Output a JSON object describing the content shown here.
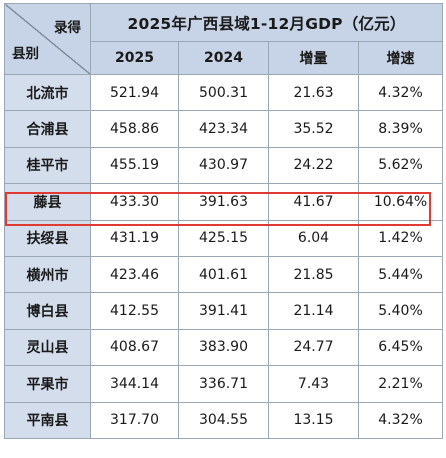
{
  "table": {
    "title": "2025年广西县域1-12月GDP（亿元）",
    "corner_top": "录得",
    "corner_bottom": "县别",
    "columns": [
      "2025",
      "2024",
      "增量",
      "增速"
    ],
    "rows": [
      {
        "name": "北流市",
        "v2025": "521.94",
        "v2024": "500.31",
        "increase": "21.63",
        "growth": "4.32%"
      },
      {
        "name": "合浦县",
        "v2025": "458.86",
        "v2024": "423.34",
        "increase": "35.52",
        "growth": "8.39%"
      },
      {
        "name": "桂平市",
        "v2025": "455.19",
        "v2024": "430.97",
        "increase": "24.22",
        "growth": "5.62%"
      },
      {
        "name": "藤县",
        "v2025": "433.30",
        "v2024": "391.63",
        "increase": "41.67",
        "growth": "10.64%"
      },
      {
        "name": "扶绥县",
        "v2025": "431.19",
        "v2024": "425.15",
        "increase": "6.04",
        "growth": "1.42%"
      },
      {
        "name": "横州市",
        "v2025": "423.46",
        "v2024": "401.61",
        "increase": "21.85",
        "growth": "5.44%"
      },
      {
        "name": "博白县",
        "v2025": "412.55",
        "v2024": "391.41",
        "increase": "21.14",
        "growth": "5.40%"
      },
      {
        "name": "灵山县",
        "v2025": "408.67",
        "v2024": "383.90",
        "increase": "24.77",
        "growth": "6.45%"
      },
      {
        "name": "平果市",
        "v2025": "344.14",
        "v2024": "336.71",
        "increase": "7.43",
        "growth": "2.21%"
      },
      {
        "name": "平南县",
        "v2025": "317.70",
        "v2024": "304.55",
        "increase": "13.15",
        "growth": "4.32%"
      }
    ],
    "highlighted_row": "藤县",
    "colors": {
      "header_bg": "#c7d3e6",
      "name_cell_bg": "#d3ddec",
      "border": "#9aa7b4",
      "highlight_border": "#e03a32"
    }
  }
}
